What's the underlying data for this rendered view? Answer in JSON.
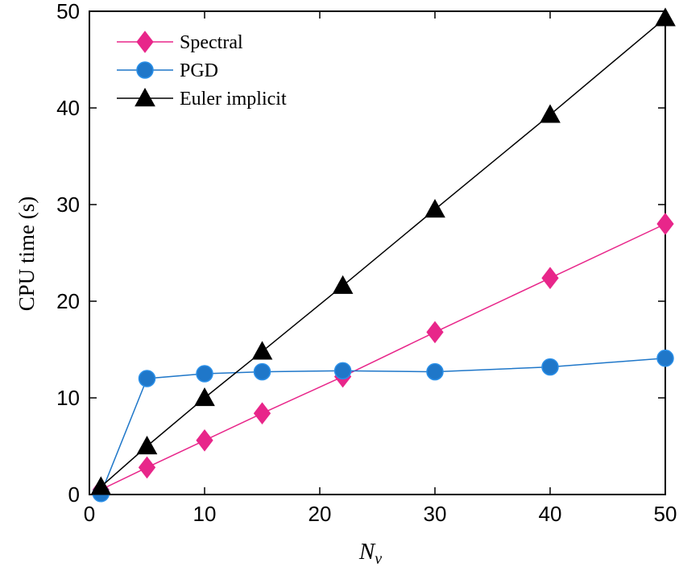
{
  "chart_data": {
    "type": "line",
    "title": "",
    "xlabel": "N",
    "xlabel_sub": "ν",
    "ylabel": "CPU time (s)",
    "xlim": [
      0,
      50
    ],
    "ylim": [
      0,
      50
    ],
    "xticks": [
      0,
      10,
      20,
      30,
      40,
      50
    ],
    "yticks": [
      0,
      10,
      20,
      30,
      40,
      50
    ],
    "grid": false,
    "legend_position": "top-left",
    "series": [
      {
        "name": "Spectral",
        "color": "#e8268a",
        "marker": "diamond",
        "x": [
          1,
          5,
          10,
          15,
          22,
          30,
          40,
          50
        ],
        "y": [
          0.5,
          2.8,
          5.6,
          8.4,
          12.2,
          16.8,
          22.4,
          28.0
        ]
      },
      {
        "name": "PGD",
        "color": "#1f77c9",
        "marker": "circle",
        "x": [
          1,
          5,
          10,
          15,
          22,
          30,
          40,
          50
        ],
        "y": [
          0.1,
          12.0,
          12.5,
          12.7,
          12.8,
          12.7,
          13.2,
          14.1
        ]
      },
      {
        "name": "Euler implicit",
        "color": "#000000",
        "marker": "triangle",
        "x": [
          1,
          5,
          10,
          15,
          22,
          30,
          40,
          50
        ],
        "y": [
          0.8,
          5.0,
          10.0,
          14.8,
          21.6,
          29.5,
          39.3,
          49.3
        ]
      }
    ]
  }
}
